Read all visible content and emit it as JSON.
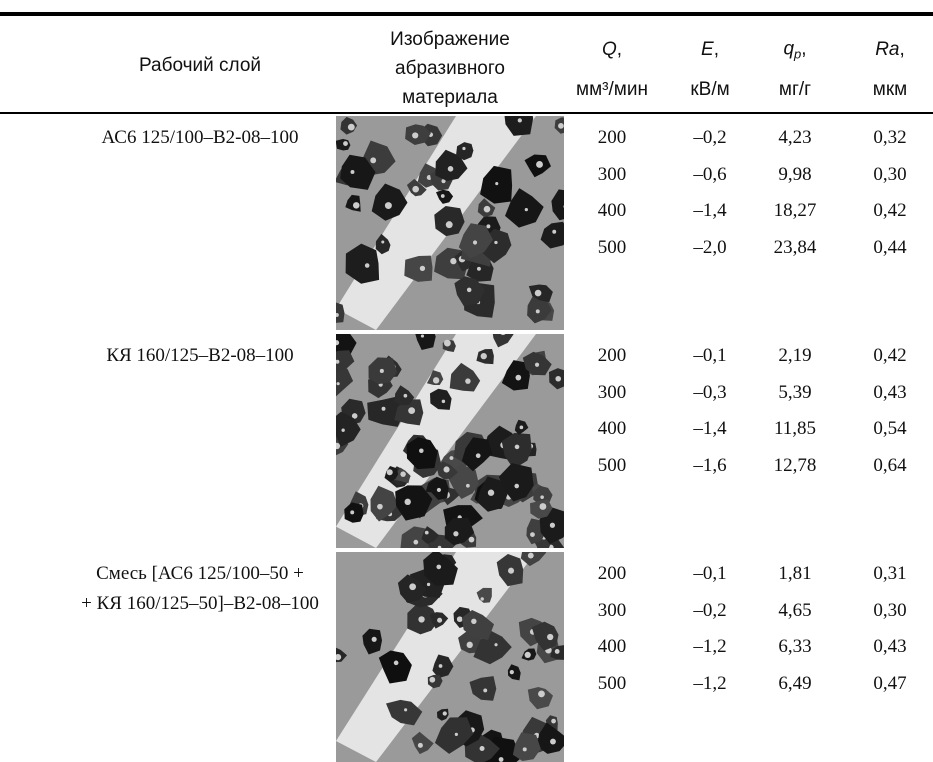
{
  "table": {
    "header": [
      {
        "text": "Рабочий слой"
      },
      {
        "lines": [
          "Изображение",
          "абразивного",
          "материала"
        ]
      },
      {
        "symbol": "Q",
        "suffix": ",",
        "unit": "мм³/мин"
      },
      {
        "symbol": "E",
        "suffix": ",",
        "unit": "кВ/м"
      },
      {
        "symbol": "q",
        "subscript": "p",
        "suffix": ",",
        "unit": "мг/г"
      },
      {
        "symbol": "Ra",
        "suffix": ",",
        "unit": "мкм"
      }
    ],
    "groups": [
      {
        "layer": [
          "АС6 125/100–В2-08–100"
        ],
        "rows": [
          [
            "200",
            "–0,2",
            "4,23",
            "0,32"
          ],
          [
            "300",
            "–0,6",
            "9,98",
            "0,30"
          ],
          [
            "400",
            "–1,4",
            "18,27",
            "0,42"
          ],
          [
            "500",
            "–2,0",
            "23,84",
            "0,44"
          ]
        ]
      },
      {
        "layer": [
          "КЯ 160/125–В2-08–100"
        ],
        "rows": [
          [
            "200",
            "–0,1",
            "2,19",
            "0,42"
          ],
          [
            "300",
            "–0,3",
            "5,39",
            "0,43"
          ],
          [
            "400",
            "–1,4",
            "11,85",
            "0,54"
          ],
          [
            "500",
            "–1,6",
            "12,78",
            "0,64"
          ]
        ]
      },
      {
        "layer": [
          "Смесь [АС6 125/100–50 +",
          "+ КЯ 160/125–50]–В2-08–100"
        ],
        "rows": [
          [
            "200",
            "–0,1",
            "1,81",
            "0,31"
          ],
          [
            "300",
            "–0,2",
            "4,65",
            "0,30"
          ],
          [
            "400",
            "–1,2",
            "6,33",
            "0,43"
          ],
          [
            "500",
            "–1,2",
            "6,49",
            "0,47"
          ]
        ]
      }
    ]
  }
}
